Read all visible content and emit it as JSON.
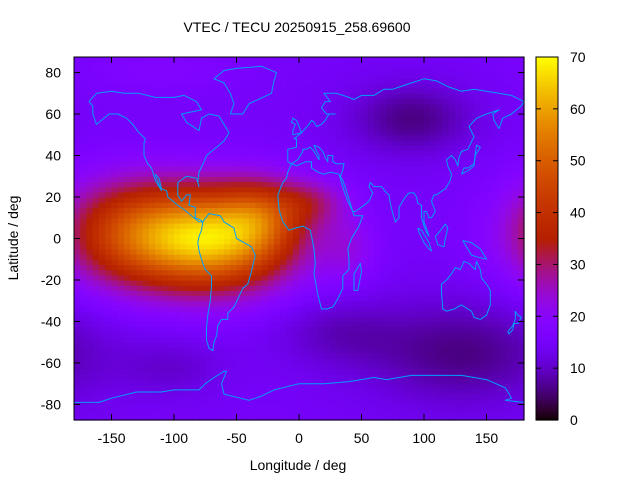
{
  "chart_data": {
    "type": "heatmap",
    "title": "VTEC / TECU 20250915_258.69600",
    "xlabel": "Longitude / deg",
    "ylabel": "Latitude / deg",
    "xlim": [
      -180,
      180
    ],
    "ylim": [
      -87.5,
      87.5
    ],
    "x_ticks": [
      -150,
      -100,
      -50,
      0,
      50,
      100,
      150
    ],
    "y_ticks": [
      -80,
      -60,
      -40,
      -20,
      0,
      20,
      40,
      60,
      80
    ],
    "colorbar": {
      "min": 0,
      "max": 70,
      "ticks": [
        0,
        10,
        20,
        30,
        40,
        50,
        60,
        70
      ],
      "colormap": "gnuplot palette: black - purple - blue-violet - magenta - red - orange - yellow"
    },
    "grid_resolution_deg": {
      "lon": 5,
      "lat": 2.5
    },
    "features": [
      {
        "type": "max",
        "lon": -70,
        "lat": 0,
        "sx": 45,
        "sy": 17,
        "amp": 48
      },
      {
        "type": "ext",
        "lon": -140,
        "lat": 3,
        "sx": 38,
        "sy": 18,
        "amp": 22
      },
      {
        "type": "ext",
        "lon": -30,
        "lat": 12,
        "sx": 22,
        "sy": 12,
        "amp": 14
      },
      {
        "type": "ext",
        "lon": 10,
        "lat": 18,
        "sx": 20,
        "sy": 8,
        "amp": 10
      },
      {
        "type": "ext",
        "lon": 40,
        "lat": -5,
        "sx": 16,
        "sy": 12,
        "amp": 6
      },
      {
        "type": "min",
        "lon": 90,
        "lat": 58,
        "sx": 35,
        "sy": 12,
        "amp": -9
      },
      {
        "type": "min",
        "lon": 130,
        "lat": -55,
        "sx": 55,
        "sy": 18,
        "amp": -9
      },
      {
        "type": "min",
        "lon": 30,
        "lat": -45,
        "sx": 35,
        "sy": 12,
        "amp": -5
      },
      {
        "type": "min",
        "lon": -100,
        "lat": -62,
        "sx": 30,
        "sy": 10,
        "amp": -4
      },
      {
        "type": "rise",
        "lon": -110,
        "lat": 82,
        "sx": 45,
        "sy": 8,
        "amp": 3
      }
    ],
    "background_tecu": 15,
    "coastline_color": "#00a0ff"
  }
}
